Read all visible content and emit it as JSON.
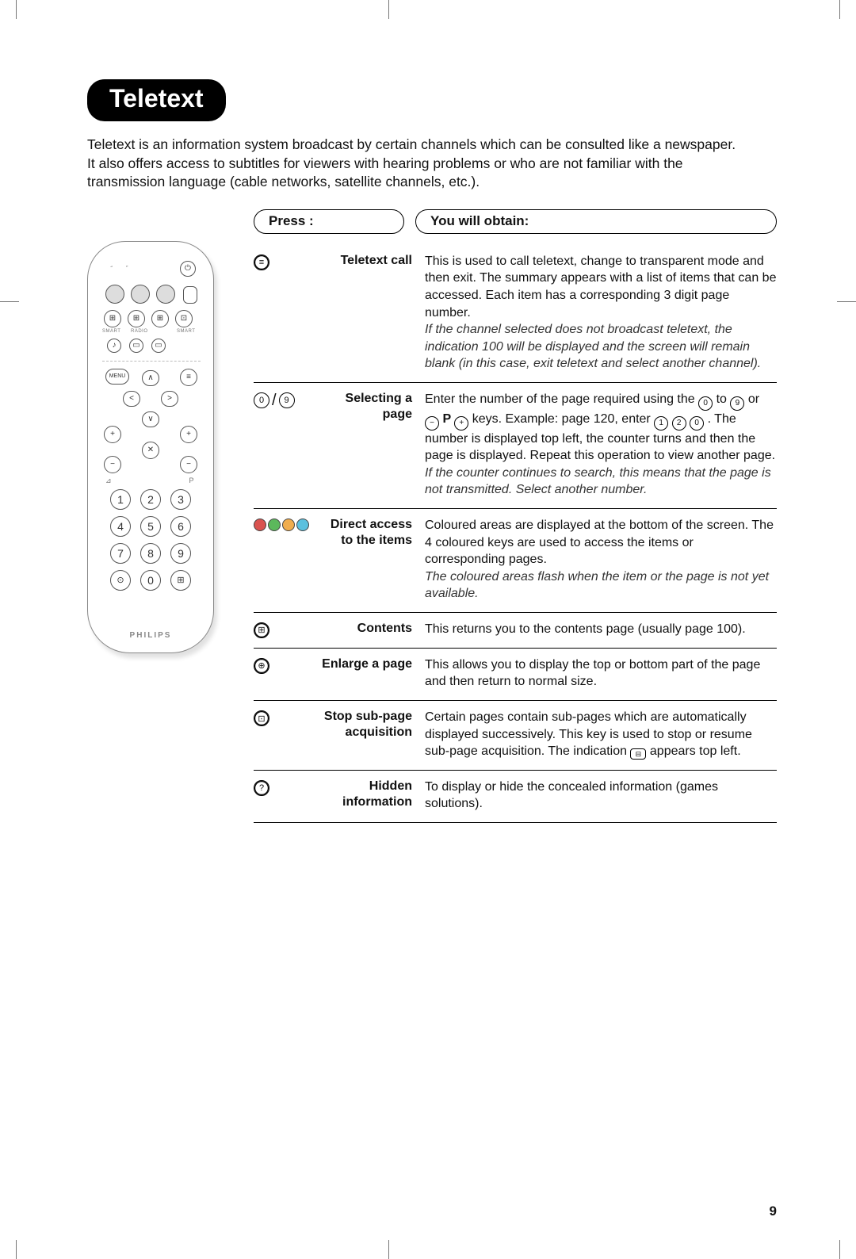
{
  "page_number": "9",
  "title": "Teletext",
  "intro": "Teletext is an information system broadcast by certain channels which can be consulted like a newspaper. It also offers access to subtitles for viewers with hearing problems or who are not familiar with the transmission language (cable networks, satellite channels, etc.).",
  "headers": {
    "press": "Press :",
    "obtain": "You will obtain:"
  },
  "remote": {
    "brand": "PHILIPS",
    "labels": {
      "smart_l": "SMART",
      "radio": "RADIO",
      "smart_r": "SMART",
      "menu": "MENU"
    },
    "numpad": [
      "1",
      "2",
      "3",
      "4",
      "5",
      "6",
      "7",
      "8",
      "9",
      "0"
    ],
    "nav_glyphs": {
      "up": "∧",
      "down": "∨",
      "left": "<",
      "right": ">",
      "plus": "+",
      "minus": "−",
      "mute": "✕",
      "vol": "⊿",
      "p": "P"
    }
  },
  "color_dots": [
    "#d9534f",
    "#5cb85c",
    "#f0ad4e",
    "#5bc0de"
  ],
  "rows": [
    {
      "icon_type": "teletext",
      "label": "Teletext call",
      "desc": "This is used to call teletext, change to transparent mode and then exit. The summary appears with a list of items that can be accessed. Each item has a corresponding 3 digit page number.",
      "ital": "If the channel selected does not broadcast teletext, the indication 100 will be displayed and the screen will remain blank (in this case, exit teletext and select another channel)."
    },
    {
      "icon_type": "digits09",
      "label": "Selecting a page",
      "desc_pre": "Enter the number of the page required using the ",
      "desc_mid1": " to ",
      "desc_mid2": " or ",
      "desc_p": " P ",
      "desc_mid3": " keys. Example: page 120, enter ",
      "desc_post": ". The number is displayed top left, the counter turns and then the page is displayed. Repeat this operation to view another page.",
      "ital": "If the counter continues to search, this means that the page is not transmitted. Select another number."
    },
    {
      "icon_type": "colordots",
      "label": "Direct access to the items",
      "desc": "Coloured areas are displayed at the bottom of the screen. The 4 coloured keys are used to access the items or corresponding pages.",
      "ital": "The coloured areas flash when the item or the page is not yet available."
    },
    {
      "icon_type": "contents",
      "label": "Contents",
      "desc": "This returns you to the contents page (usually page 100)."
    },
    {
      "icon_type": "enlarge",
      "label": "Enlarge a page",
      "desc": "This allows you to display the top or bottom part of the page and then return to normal size."
    },
    {
      "icon_type": "stop",
      "label": "Stop sub-page acquisition",
      "desc_pre": "Certain pages contain sub-pages which are automatically displayed successively. This key is used to stop or resume sub-page acquisition. The indication ",
      "desc_post": " appears top left."
    },
    {
      "icon_type": "hidden",
      "label": "Hidden information",
      "desc": "To display or hide the concealed information (games solutions)."
    }
  ],
  "inline_keys": {
    "k0": "0",
    "k9": "9",
    "k1": "1",
    "k2": "2",
    "minus": "−",
    "plus": "+",
    "subpage": "⊟",
    "question": "?",
    "teletext": "≡",
    "contents": "⊞",
    "enlarge": "⊕",
    "stop": "⊡"
  }
}
